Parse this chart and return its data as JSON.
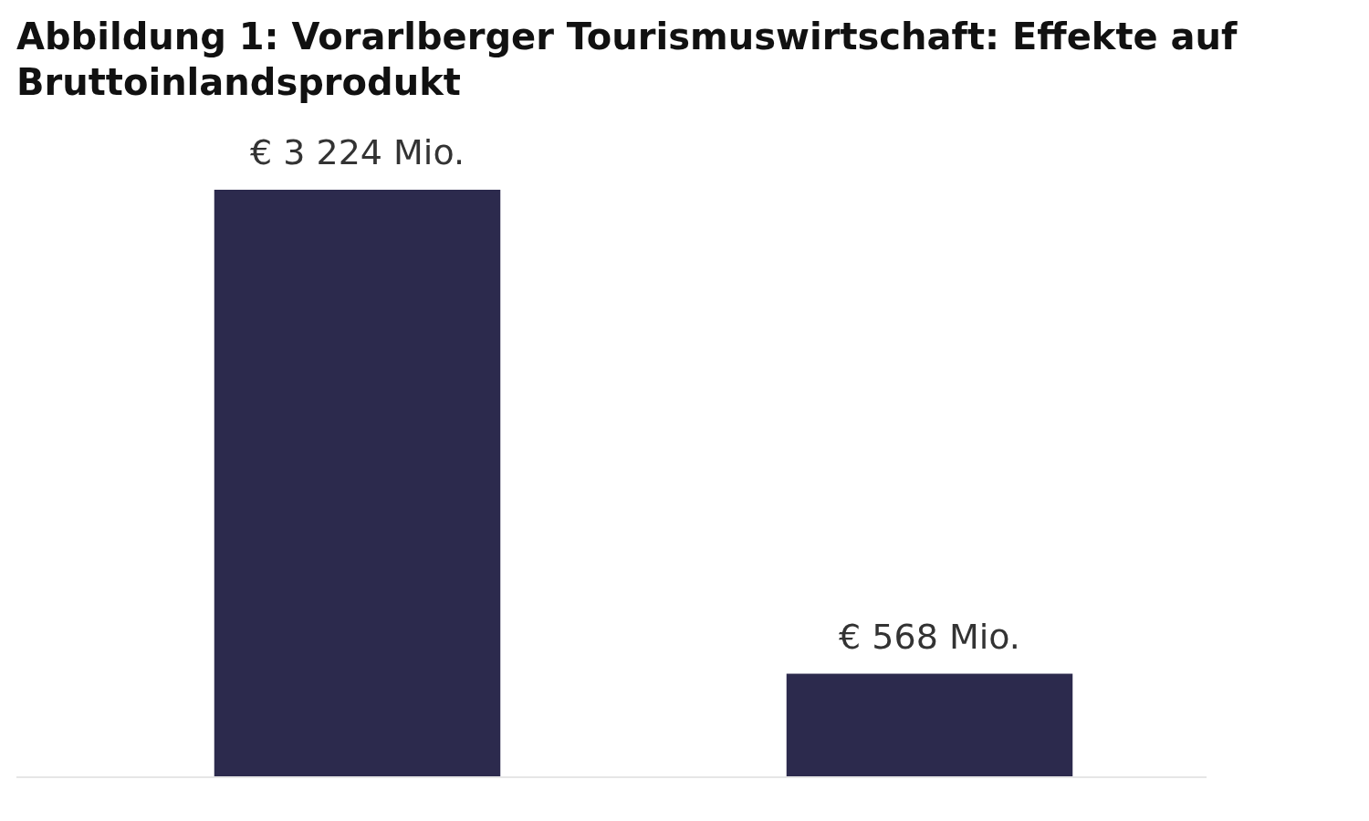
{
  "chart_data": {
    "type": "bar",
    "title": "Abbildung 1: Vorarlberger Tourismuswirtschaft: Effekte auf Bruttoinlandsprodukt",
    "categories": [
      null,
      null
    ],
    "values": [
      3224,
      568
    ],
    "value_labels": [
      "€ 3 224 Mio.",
      "€ 568 Mio."
    ],
    "color": "#2c2a4d"
  }
}
